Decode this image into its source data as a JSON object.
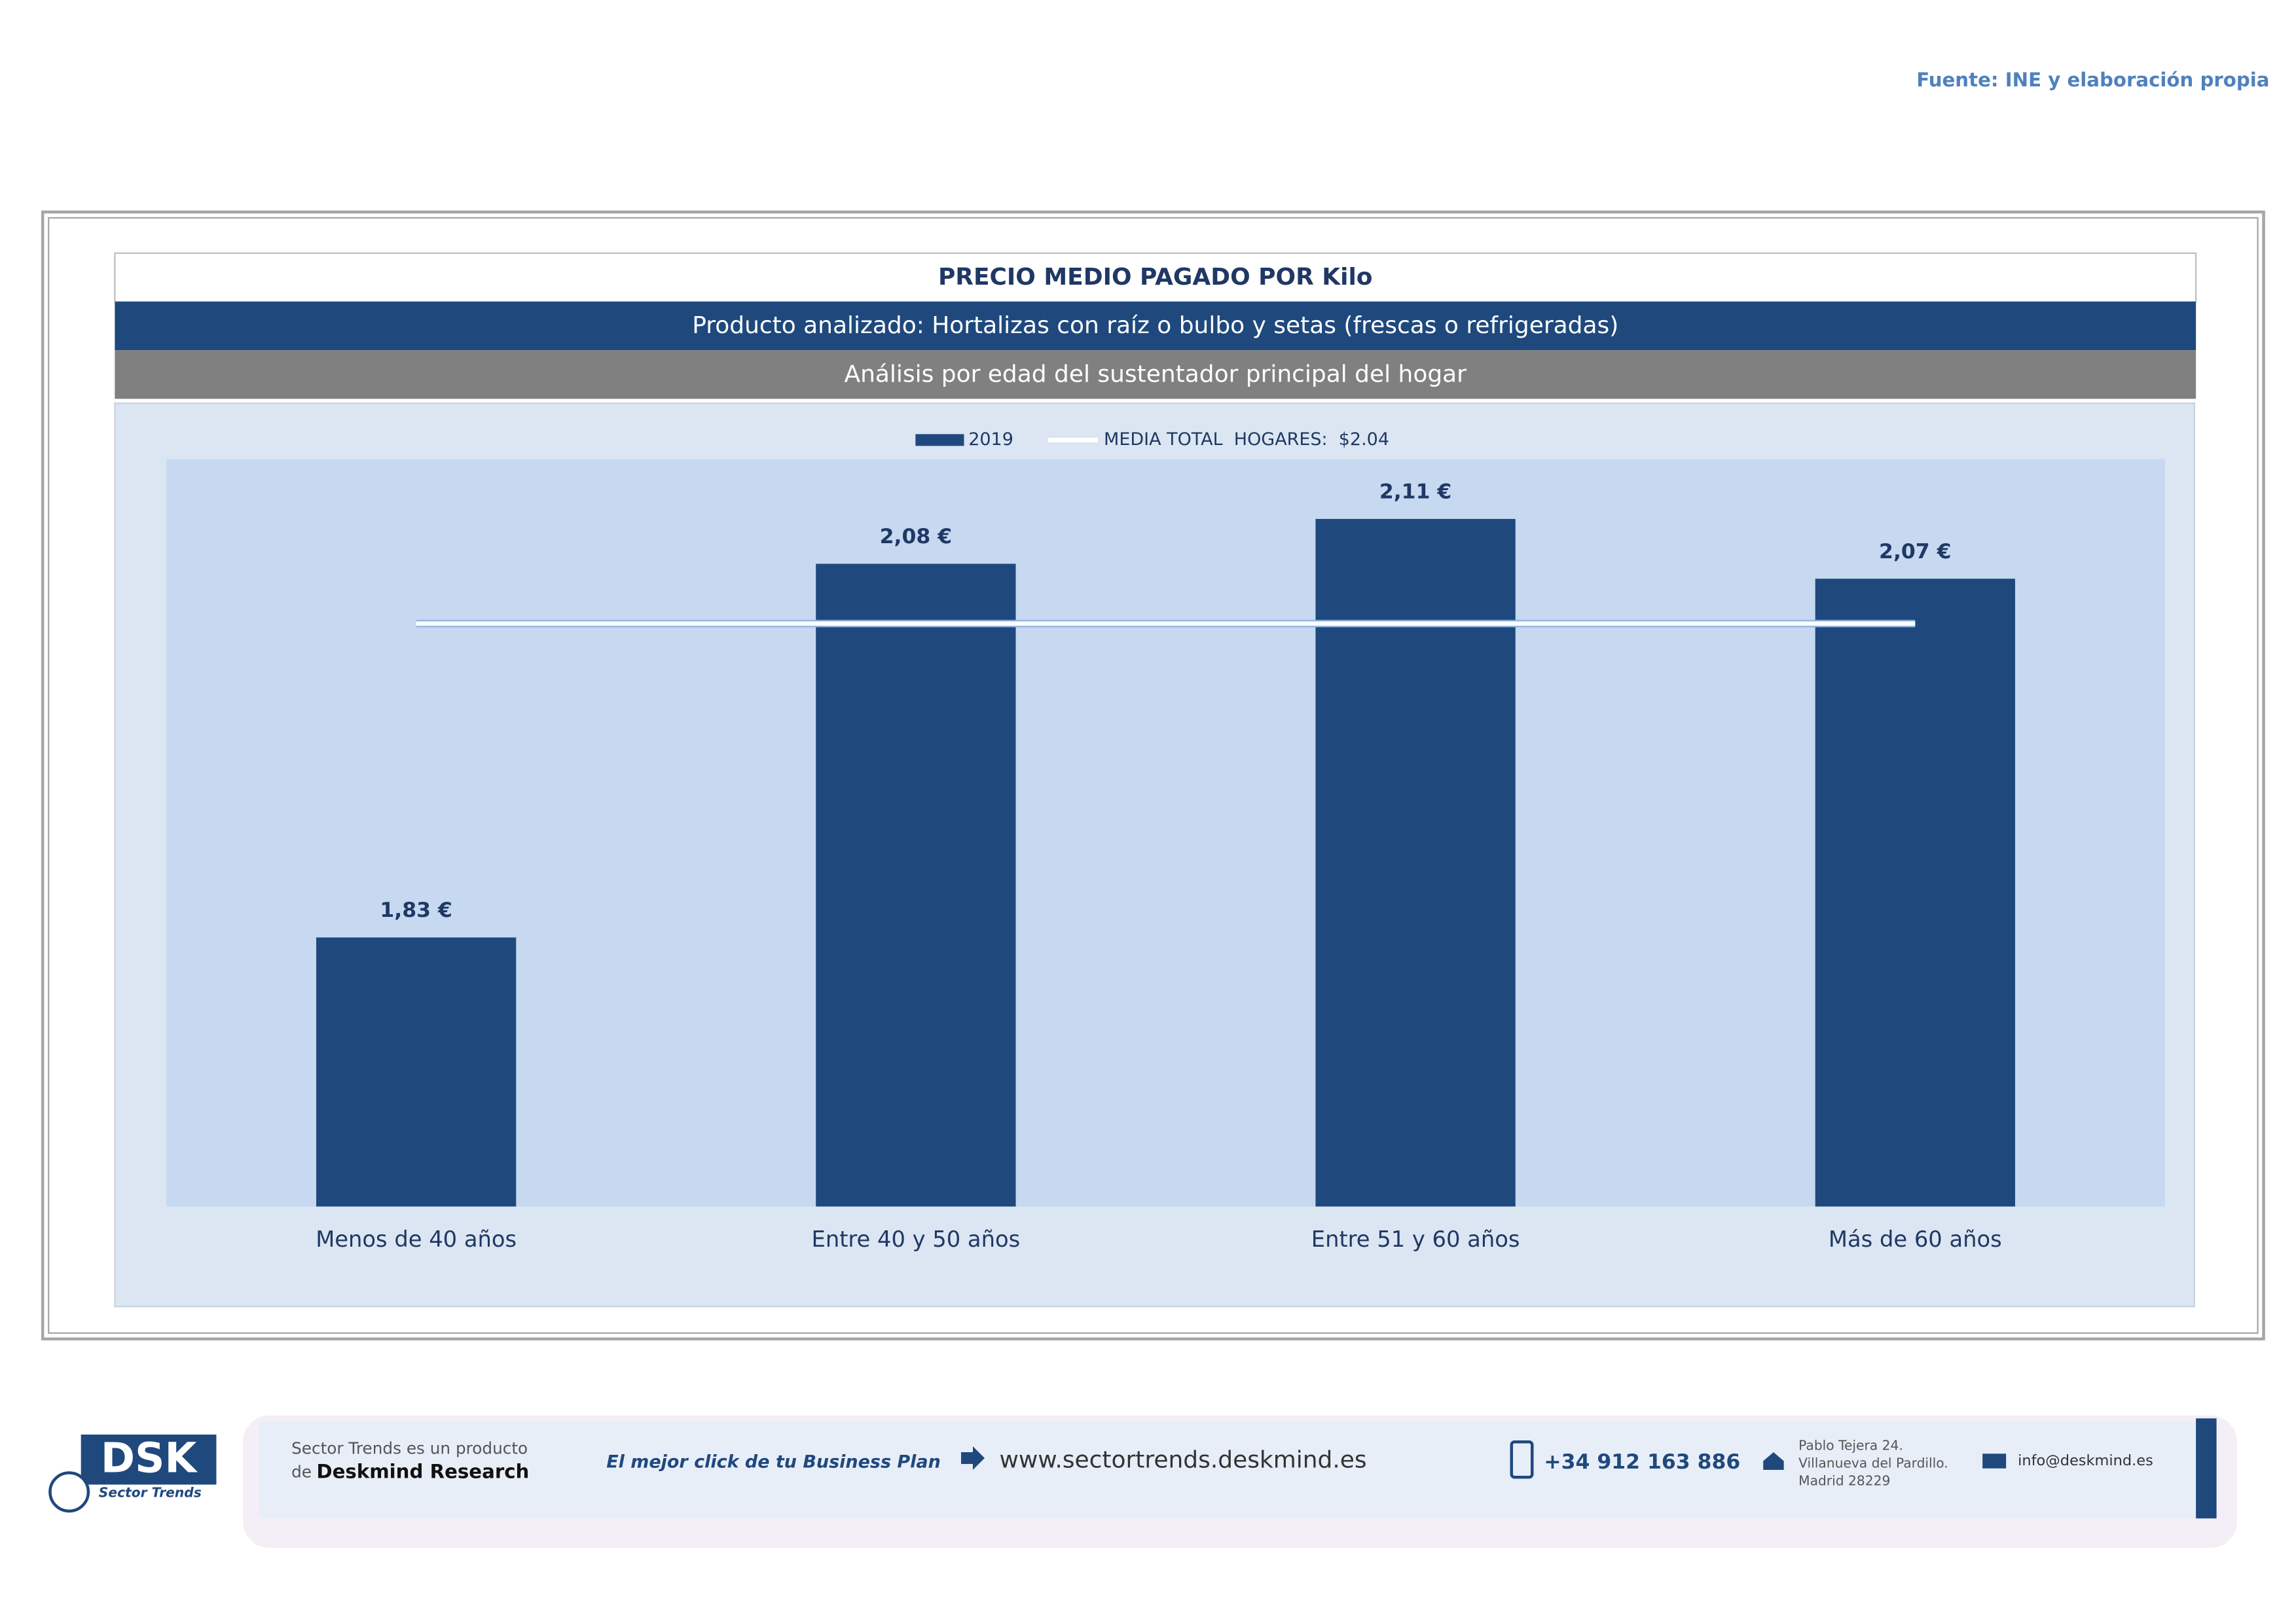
{
  "source": "Fuente: INE y elaboración propia",
  "header": {
    "product": "Producto analizado: Hortalizas con raíz o bulbo y setas (frescas o refrigeradas)",
    "analysis": "Análisis por edad del sustentador principal del hogar"
  },
  "chart_data": {
    "type": "bar",
    "title": "PRECIO MEDIO PAGADO POR Kilo",
    "categories": [
      "Menos de 40 años",
      "Entre 40 y 50 años",
      "Entre 51  y 60 años",
      "Más de 60 años"
    ],
    "series": [
      {
        "name": "2019",
        "type": "bar",
        "color": "#1f497d",
        "values": [
          1.83,
          2.08,
          2.11,
          2.07
        ],
        "value_labels": [
          "1,83 €",
          "2,08 €",
          "2,11 €",
          "2,07 €"
        ]
      },
      {
        "name": "MEDIA TOTAL  HOGARES:  $2.04",
        "type": "line",
        "color": "#ffffff",
        "values": [
          2.04,
          2.04,
          2.04,
          2.04
        ]
      }
    ],
    "ylim": [
      1.65,
      2.15
    ],
    "grid": false,
    "legend": "top"
  },
  "footer": {
    "logo": "DSK",
    "logo_sub": "Sector Trends",
    "line1": "Sector Trends es un producto",
    "line2a": "de",
    "line2b": "Deskmind Research",
    "slogan": "El mejor click de tu Business Plan",
    "web": "www.sectortrends.deskmind.es",
    "phone": "+34 912 163 886",
    "address": [
      "Pablo Tejera 24.",
      "Villanueva del Pardillo.",
      "Madrid 28229"
    ],
    "email": "info@deskmind.es"
  }
}
